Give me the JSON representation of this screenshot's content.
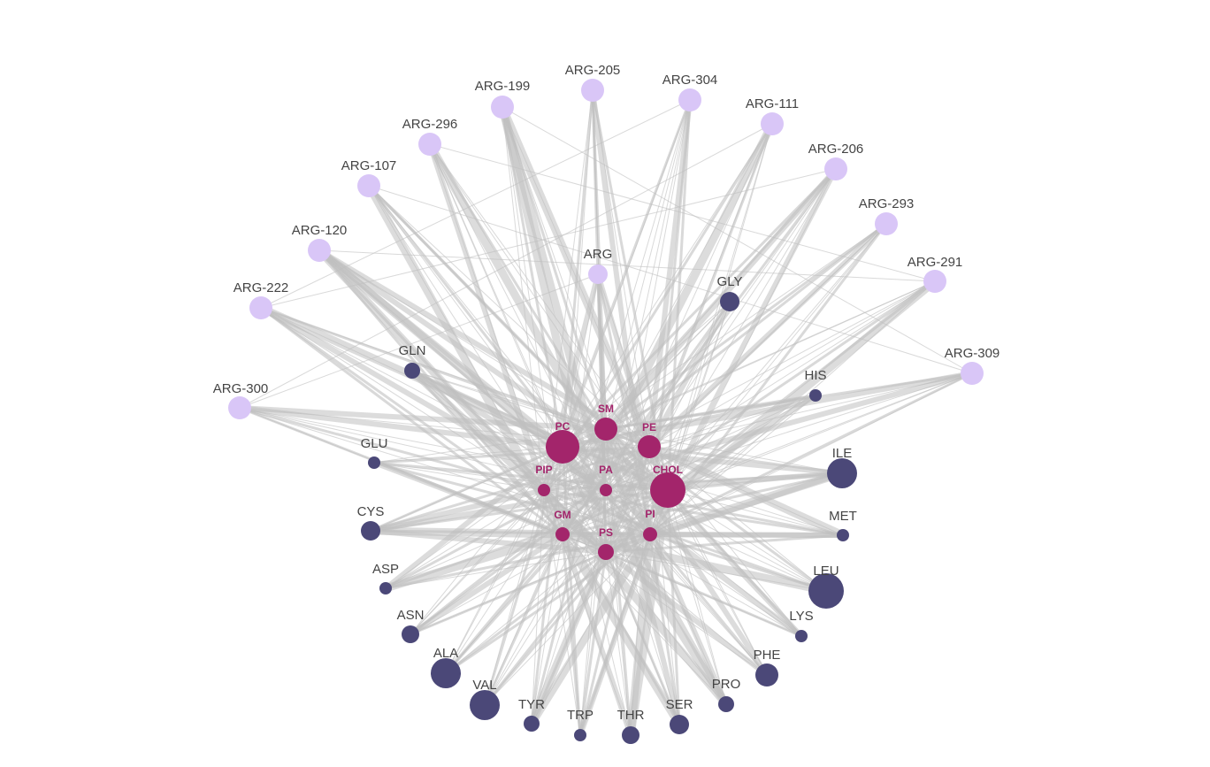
{
  "colors": {
    "arg_node": "#d9c6f7",
    "residue_node": "#4b4878",
    "lipid_node": "#a3256b",
    "edge": "#c0c0c0",
    "residue_label": "#444444",
    "lipid_label": "#a3256b"
  },
  "nodes": [
    {
      "id": "ARG-205",
      "label": "ARG-205",
      "group": "arg"
    },
    {
      "id": "ARG-304",
      "label": "ARG-304",
      "group": "arg"
    },
    {
      "id": "ARG-199",
      "label": "ARG-199",
      "group": "arg"
    },
    {
      "id": "ARG-111",
      "label": "ARG-111",
      "group": "arg"
    },
    {
      "id": "ARG-296",
      "label": "ARG-296",
      "group": "arg"
    },
    {
      "id": "ARG-206",
      "label": "ARG-206",
      "group": "arg"
    },
    {
      "id": "ARG-107",
      "label": "ARG-107",
      "group": "arg"
    },
    {
      "id": "ARG-293",
      "label": "ARG-293",
      "group": "arg"
    },
    {
      "id": "ARG-120",
      "label": "ARG-120",
      "group": "arg"
    },
    {
      "id": "ARG-291",
      "label": "ARG-291",
      "group": "arg"
    },
    {
      "id": "ARG-222",
      "label": "ARG-222",
      "group": "arg"
    },
    {
      "id": "ARG",
      "label": "ARG",
      "group": "arg"
    },
    {
      "id": "ARG-309",
      "label": "ARG-309",
      "group": "arg"
    },
    {
      "id": "ARG-300",
      "label": "ARG-300",
      "group": "arg"
    },
    {
      "id": "GLY",
      "label": "GLY",
      "group": "residue"
    },
    {
      "id": "GLN",
      "label": "GLN",
      "group": "residue"
    },
    {
      "id": "HIS",
      "label": "HIS",
      "group": "residue"
    },
    {
      "id": "GLU",
      "label": "GLU",
      "group": "residue"
    },
    {
      "id": "ILE",
      "label": "ILE",
      "group": "residue"
    },
    {
      "id": "CYS",
      "label": "CYS",
      "group": "residue"
    },
    {
      "id": "MET",
      "label": "MET",
      "group": "residue"
    },
    {
      "id": "ASP",
      "label": "ASP",
      "group": "residue"
    },
    {
      "id": "LEU",
      "label": "LEU",
      "group": "residue"
    },
    {
      "id": "ASN",
      "label": "ASN",
      "group": "residue"
    },
    {
      "id": "LYS",
      "label": "LYS",
      "group": "residue"
    },
    {
      "id": "ALA",
      "label": "ALA",
      "group": "residue"
    },
    {
      "id": "PHE",
      "label": "PHE",
      "group": "residue"
    },
    {
      "id": "VAL",
      "label": "VAL",
      "group": "residue"
    },
    {
      "id": "PRO",
      "label": "PRO",
      "group": "residue"
    },
    {
      "id": "TYR",
      "label": "TYR",
      "group": "residue"
    },
    {
      "id": "SER",
      "label": "SER",
      "group": "residue"
    },
    {
      "id": "TRP",
      "label": "TRP",
      "group": "residue"
    },
    {
      "id": "THR",
      "label": "THR",
      "group": "residue"
    },
    {
      "id": "SM",
      "label": "SM",
      "group": "lipid"
    },
    {
      "id": "PC",
      "label": "PC",
      "group": "lipid"
    },
    {
      "id": "PE",
      "label": "PE",
      "group": "lipid"
    },
    {
      "id": "PIP",
      "label": "PIP",
      "group": "lipid"
    },
    {
      "id": "PA",
      "label": "PA",
      "group": "lipid"
    },
    {
      "id": "CHOL",
      "label": "CHOL",
      "group": "lipid"
    },
    {
      "id": "GM",
      "label": "GM",
      "group": "lipid"
    },
    {
      "id": "PI",
      "label": "PI",
      "group": "lipid"
    },
    {
      "id": "PS",
      "label": "PS",
      "group": "lipid"
    }
  ]
}
